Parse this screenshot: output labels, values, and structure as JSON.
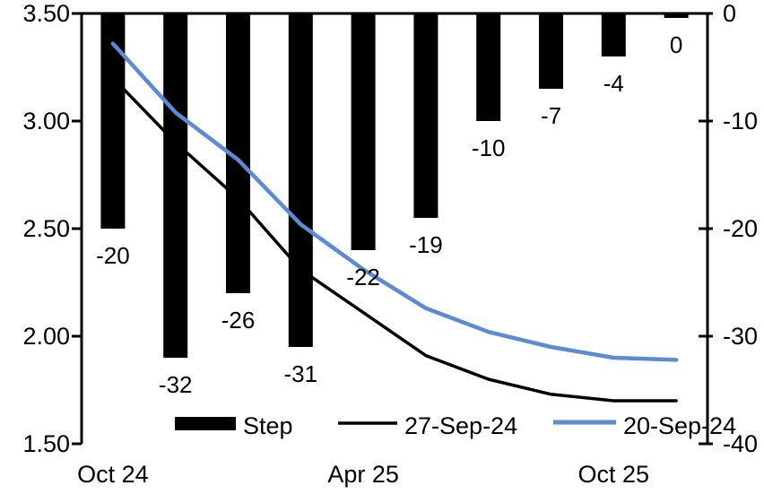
{
  "chart_data": {
    "type": "combo-bar-line",
    "title": "",
    "background_color": "#ffffff",
    "meetings_count": 10,
    "left_axis": {
      "label": "",
      "min": 1.5,
      "max": 3.5,
      "tick_values": [
        3.5,
        3.0,
        2.5,
        2.0,
        1.5
      ],
      "tick_labels": [
        "3.50",
        "3.00",
        "2.50",
        "2.00",
        "1.50"
      ]
    },
    "right_axis": {
      "label": "",
      "min": -40,
      "max": 0,
      "tick_values": [
        0,
        -10,
        -20,
        -30,
        -40
      ],
      "tick_labels": [
        "0",
        "-10",
        "-20",
        "-30",
        "-40"
      ]
    },
    "x_axis": {
      "tick_labels": [
        {
          "label": "Oct 24",
          "slot": 0
        },
        {
          "label": "Apr 25",
          "slot": 4
        },
        {
          "label": "Oct 25",
          "slot": 8
        }
      ]
    },
    "bar_series": {
      "name": "Step",
      "axis": "right",
      "color": "#000000",
      "values": [
        -20,
        -32,
        -26,
        -31,
        -22,
        -19,
        -10,
        -7,
        -4,
        0
      ],
      "data_labels": [
        "-20",
        "-32",
        "-26",
        "-31",
        "-22",
        "-19",
        "-10",
        "-7",
        "-4",
        "0"
      ]
    },
    "line_series": [
      {
        "name": "27-Sep-24",
        "axis": "left",
        "color": "#000000",
        "stroke_width": 3.5,
        "values": [
          3.2,
          2.9,
          2.64,
          2.31,
          2.11,
          1.91,
          1.8,
          1.73,
          1.7,
          1.7
        ]
      },
      {
        "name": "20-Sep-24",
        "axis": "left",
        "color": "#5B8BD5",
        "stroke_width": 4.5,
        "values": [
          3.36,
          3.04,
          2.82,
          2.52,
          2.31,
          2.13,
          2.02,
          1.95,
          1.9,
          1.89
        ]
      }
    ],
    "legend": {
      "position": "bottom",
      "items": [
        {
          "label": "Step",
          "swatch": "bar",
          "color": "#000000"
        },
        {
          "label": "27-Sep-24",
          "swatch": "line",
          "color": "#000000"
        },
        {
          "label": "20-Sep-24",
          "swatch": "line",
          "color": "#5B8BD5"
        }
      ]
    },
    "grid": false,
    "axis_color": "#000000"
  }
}
